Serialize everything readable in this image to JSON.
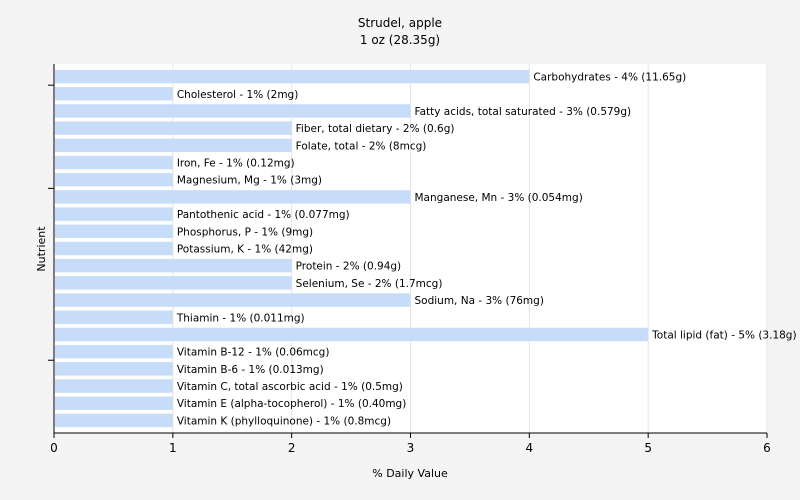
{
  "chart_data": {
    "type": "bar",
    "orientation": "horizontal",
    "title": "Strudel, apple",
    "subtitle": "1 oz (28.35g)",
    "xlabel": "% Daily Value",
    "ylabel": "Nutrient",
    "xlim": [
      0,
      6
    ],
    "xticks": [
      0,
      1,
      2,
      3,
      4,
      5,
      6
    ],
    "grid": "vertical",
    "bar_color": "#c6dcf8",
    "categories": [
      "Carbohydrates",
      "Cholesterol",
      "Fatty acids, total saturated",
      "Fiber, total dietary",
      "Folate, total",
      "Iron, Fe",
      "Magnesium, Mg",
      "Manganese, Mn",
      "Pantothenic acid",
      "Phosphorus, P",
      "Potassium, K",
      "Protein",
      "Selenium, Se",
      "Sodium, Na",
      "Thiamin",
      "Total lipid (fat)",
      "Vitamin B-12",
      "Vitamin B-6",
      "Vitamin C, total ascorbic acid",
      "Vitamin E (alpha-tocopherol)",
      "Vitamin K (phylloquinone)"
    ],
    "values": [
      4,
      1,
      3,
      2,
      2,
      1,
      1,
      3,
      1,
      1,
      1,
      2,
      2,
      3,
      1,
      5,
      1,
      1,
      1,
      1,
      1
    ],
    "labels": [
      "Carbohydrates - 4% (11.65g)",
      "Cholesterol - 1% (2mg)",
      "Fatty acids, total saturated - 3% (0.579g)",
      "Fiber, total dietary - 2% (0.6g)",
      "Folate, total - 2% (8mcg)",
      "Iron, Fe - 1% (0.12mg)",
      "Magnesium, Mg - 1% (3mg)",
      "Manganese, Mn - 3% (0.054mg)",
      "Pantothenic acid - 1% (0.077mg)",
      "Phosphorus, P - 1% (9mg)",
      "Potassium, K - 1% (42mg)",
      "Protein - 2% (0.94g)",
      "Selenium, Se - 2% (1.7mcg)",
      "Sodium, Na - 3% (76mg)",
      "Thiamin - 1% (0.011mg)",
      "Total lipid (fat) - 5% (3.18g)",
      "Vitamin B-12 - 1% (0.06mcg)",
      "Vitamin B-6 - 1% (0.013mg)",
      "Vitamin C, total ascorbic acid - 1% (0.5mg)",
      "Vitamin E (alpha-tocopherol) - 1% (0.40mg)",
      "Vitamin K (phylloquinone) - 1% (0.8mcg)"
    ]
  }
}
